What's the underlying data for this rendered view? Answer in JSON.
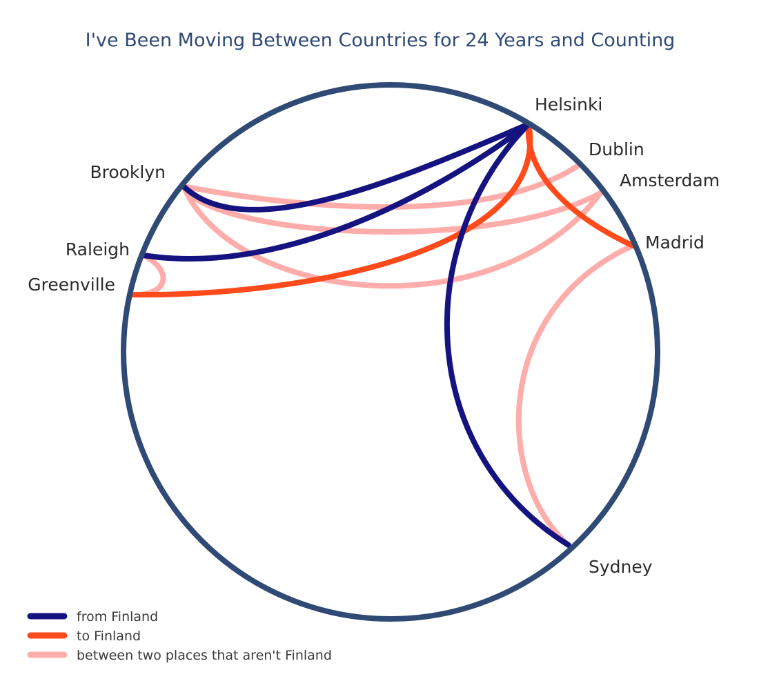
{
  "title": "I've Been Moving Between Countries for 24 Years and Counting",
  "chart_data": {
    "type": "chord",
    "places": [
      {
        "id": "helsinki",
        "name": "Helsinki"
      },
      {
        "id": "dublin",
        "name": "Dublin"
      },
      {
        "id": "amsterdam",
        "name": "Amsterdam"
      },
      {
        "id": "madrid",
        "name": "Madrid"
      },
      {
        "id": "sydney",
        "name": "Sydney"
      },
      {
        "id": "brooklyn",
        "name": "Brooklyn"
      },
      {
        "id": "raleigh",
        "name": "Raleigh"
      },
      {
        "id": "greenville",
        "name": "Greenville"
      }
    ],
    "moves": [
      {
        "from": "helsinki",
        "to": "brooklyn",
        "category": "from"
      },
      {
        "from": "helsinki",
        "to": "raleigh",
        "category": "from"
      },
      {
        "from": "helsinki",
        "to": "sydney",
        "category": "from"
      },
      {
        "from": "greenville",
        "to": "helsinki",
        "category": "to"
      },
      {
        "from": "madrid",
        "to": "helsinki",
        "category": "to"
      },
      {
        "from": "brooklyn",
        "to": "dublin",
        "category": "between"
      },
      {
        "from": "brooklyn",
        "to": "amsterdam",
        "category": "between"
      },
      {
        "from": "brooklyn",
        "to": "amsterdam",
        "category": "between"
      },
      {
        "from": "raleigh",
        "to": "greenville",
        "category": "between"
      },
      {
        "from": "madrid",
        "to": "sydney",
        "category": "between"
      }
    ],
    "legend": [
      {
        "category": "from",
        "label": "from Finland",
        "color": "#14137f"
      },
      {
        "category": "to",
        "label": "to Finland",
        "color": "#ff4a1c"
      },
      {
        "category": "between",
        "label": "between two  places that aren't Finland",
        "color": "#ffadaa"
      }
    ],
    "circle_color": "#2f4a75"
  }
}
